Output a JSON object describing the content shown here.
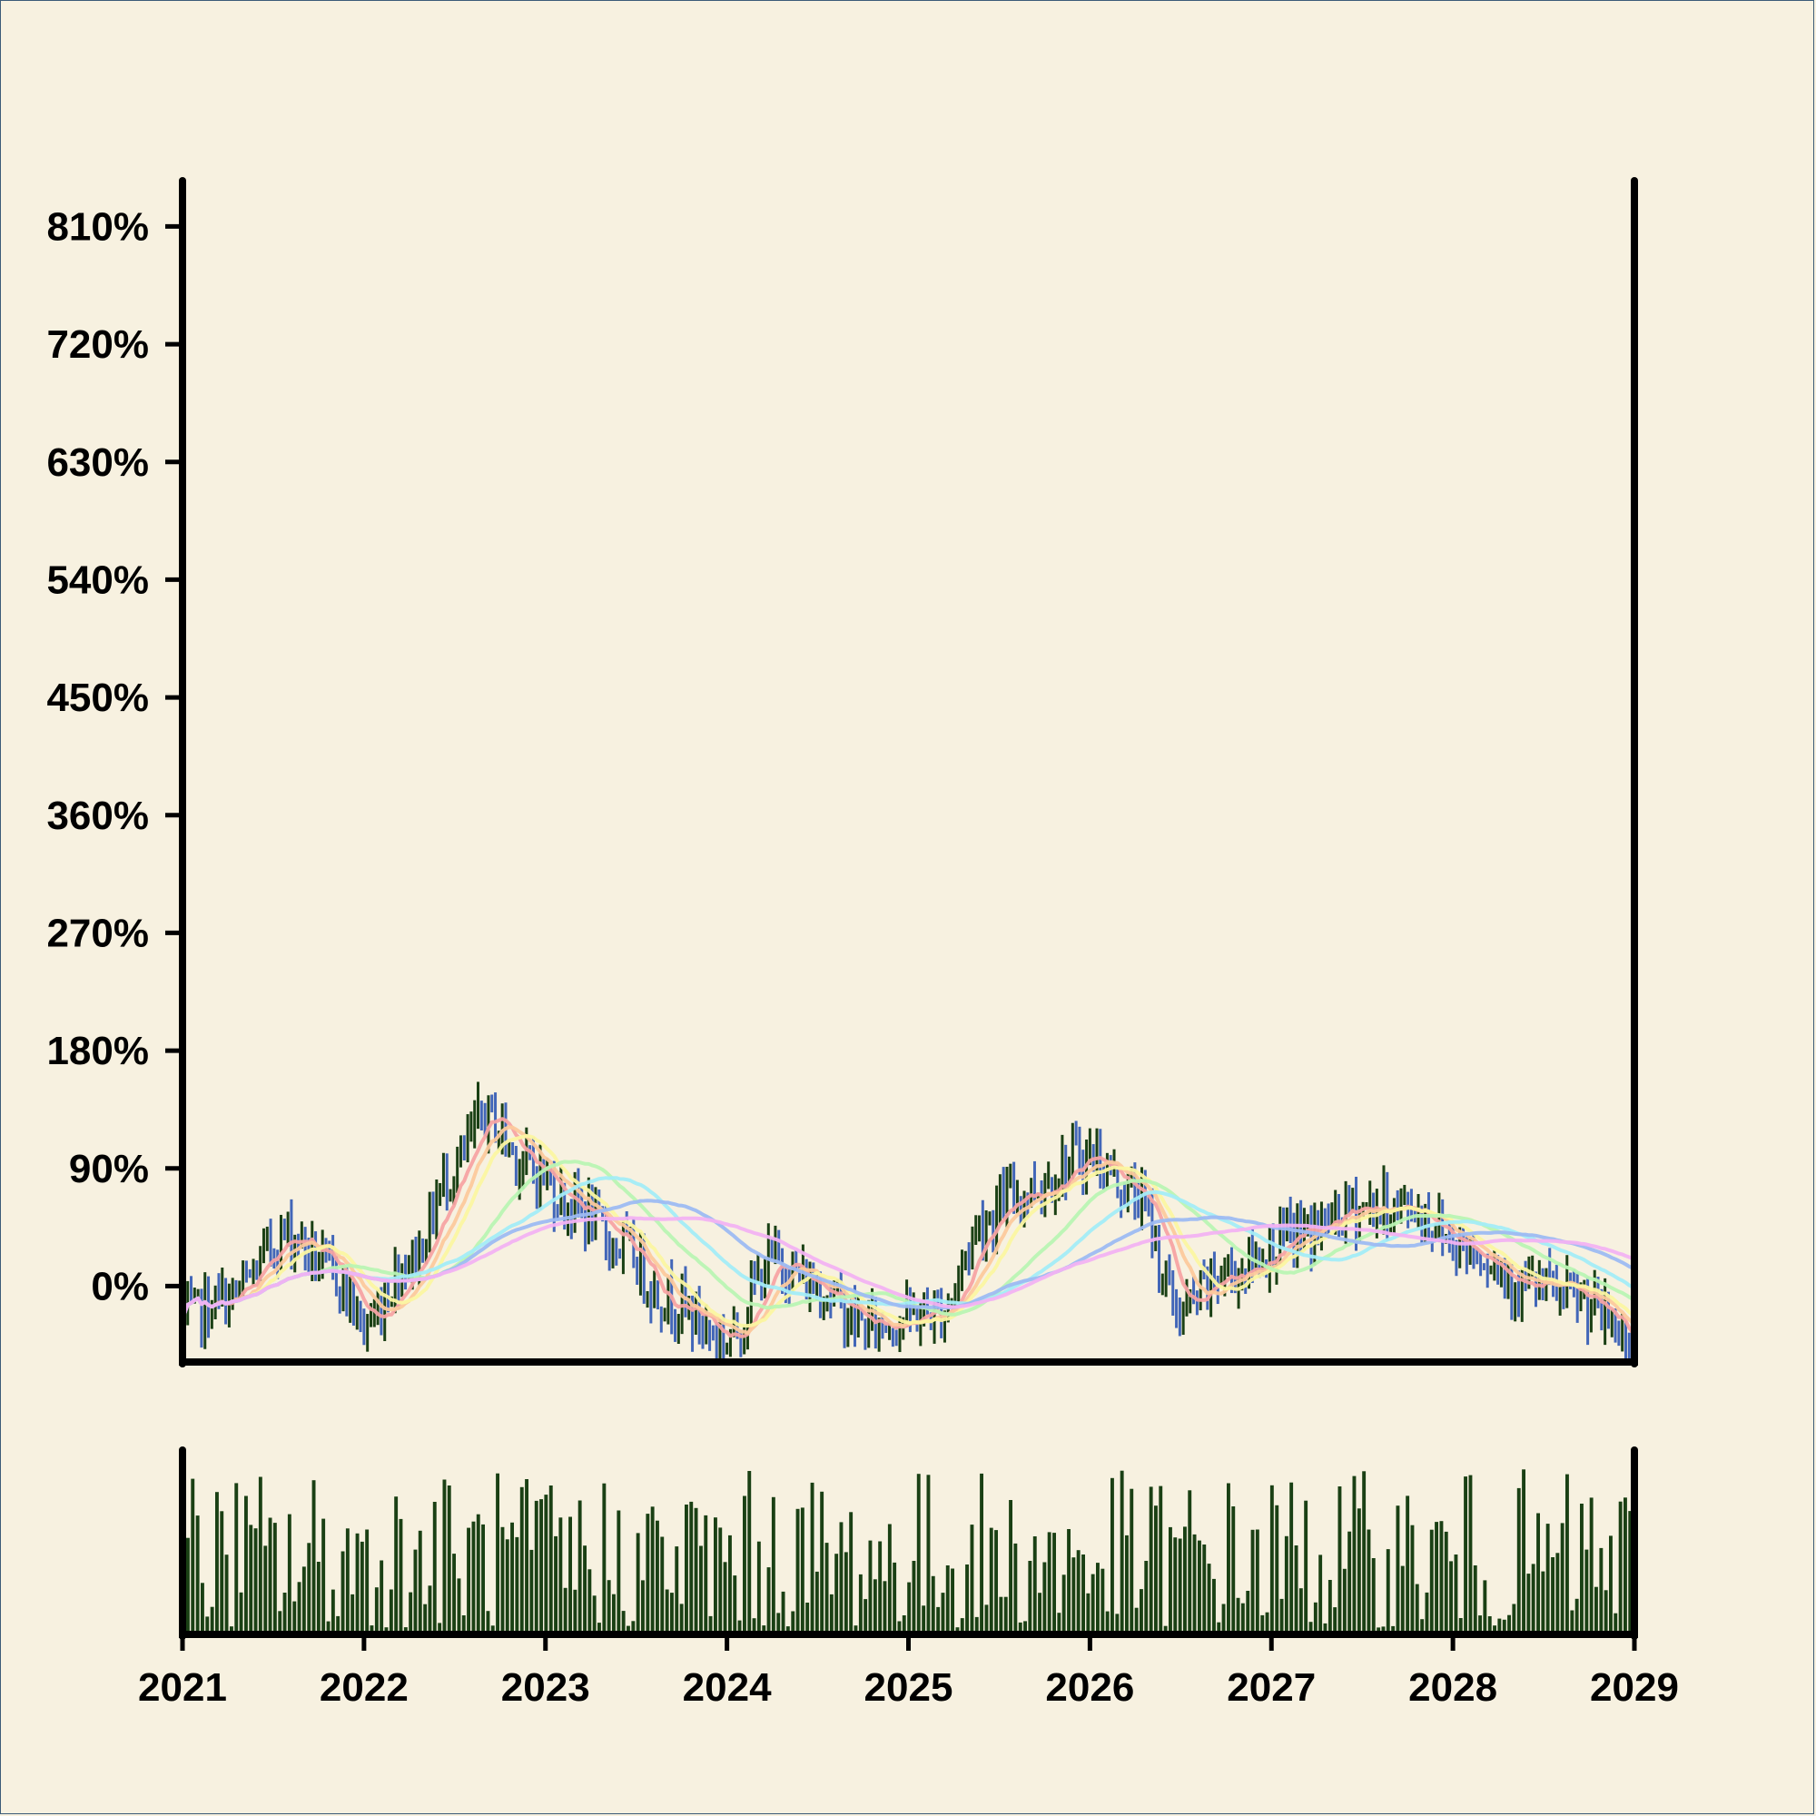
{
  "chart_data": {
    "type": "candlestick",
    "title": "",
    "xlabel": "",
    "ylabel": "",
    "x_ticks": [
      "2021",
      "2022",
      "2023",
      "2024",
      "2025",
      "2026",
      "2027",
      "2028",
      "2029"
    ],
    "xlim": [
      "2021-01",
      "2029-01"
    ],
    "y_ticks": [
      "0%",
      "90%",
      "180%",
      "270%",
      "360%",
      "450%",
      "540%",
      "630%",
      "720%",
      "810%"
    ],
    "ylim": [
      -58,
      845
    ],
    "colors": {
      "up": "#1a4014",
      "down": "#4266b8",
      "volume": "#1a4014",
      "background": "#f7f1e0",
      "axes": "#000000"
    },
    "moving_average_colors": [
      "#f7a3a3",
      "#fcc99c",
      "#fbf6a1",
      "#b9f4b3",
      "#a3ecf7",
      "#9dbbf2",
      "#f2b2f2"
    ],
    "price_anchors": [
      {
        "date": "2021-01",
        "close": -25
      },
      {
        "date": "2021-04",
        "close": -10
      },
      {
        "date": "2021-08",
        "close": 40
      },
      {
        "date": "2021-11",
        "close": 10
      },
      {
        "date": "2022-01",
        "close": -30
      },
      {
        "date": "2022-04",
        "close": 20
      },
      {
        "date": "2022-07",
        "close": 90
      },
      {
        "date": "2022-09",
        "close": 130
      },
      {
        "date": "2022-12",
        "close": 90
      },
      {
        "date": "2023-03",
        "close": 60
      },
      {
        "date": "2023-06",
        "close": 30
      },
      {
        "date": "2023-09",
        "close": -10
      },
      {
        "date": "2024-01",
        "close": -40
      },
      {
        "date": "2024-04",
        "close": 20
      },
      {
        "date": "2024-07",
        "close": 0
      },
      {
        "date": "2024-10",
        "close": -30
      },
      {
        "date": "2025-03",
        "close": -20
      },
      {
        "date": "2025-06",
        "close": 50
      },
      {
        "date": "2025-08",
        "close": 70
      },
      {
        "date": "2026-01",
        "close": 100
      },
      {
        "date": "2026-04",
        "close": 70
      },
      {
        "date": "2026-07",
        "close": -20
      },
      {
        "date": "2026-10",
        "close": 10
      },
      {
        "date": "2027-03",
        "close": 40
      },
      {
        "date": "2027-07",
        "close": 60
      },
      {
        "date": "2027-10",
        "close": 60
      },
      {
        "date": "2028-02",
        "close": 30
      },
      {
        "date": "2028-06",
        "close": 0
      },
      {
        "date": "2028-09",
        "close": -10
      },
      {
        "date": "2029-01",
        "close": -40
      }
    ],
    "volume_range": [
      2,
      100
    ]
  }
}
